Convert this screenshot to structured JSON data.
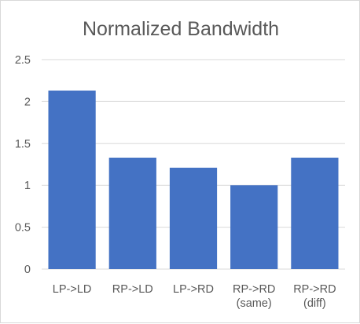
{
  "chart_data": {
    "type": "bar",
    "title": "Normalized Bandwidth",
    "xlabel": "",
    "ylabel": "",
    "categories": [
      [
        "LP->LD"
      ],
      [
        "RP->LD"
      ],
      [
        "LP->RD"
      ],
      [
        "RP->RD",
        "(same)"
      ],
      [
        "RP->RD",
        "(diff)"
      ]
    ],
    "values": [
      2.13,
      1.33,
      1.21,
      1.0,
      1.33
    ],
    "ylim": [
      0,
      2.5
    ],
    "yticks": [
      "0",
      "0.5",
      "1",
      "1.5",
      "2",
      "2.5"
    ],
    "ytick_values": [
      0,
      0.5,
      1,
      1.5,
      2,
      2.5
    ],
    "grid": true,
    "bar_color": "#4472c4",
    "grid_color": "#d9d9d9",
    "text_color": "#595959"
  }
}
